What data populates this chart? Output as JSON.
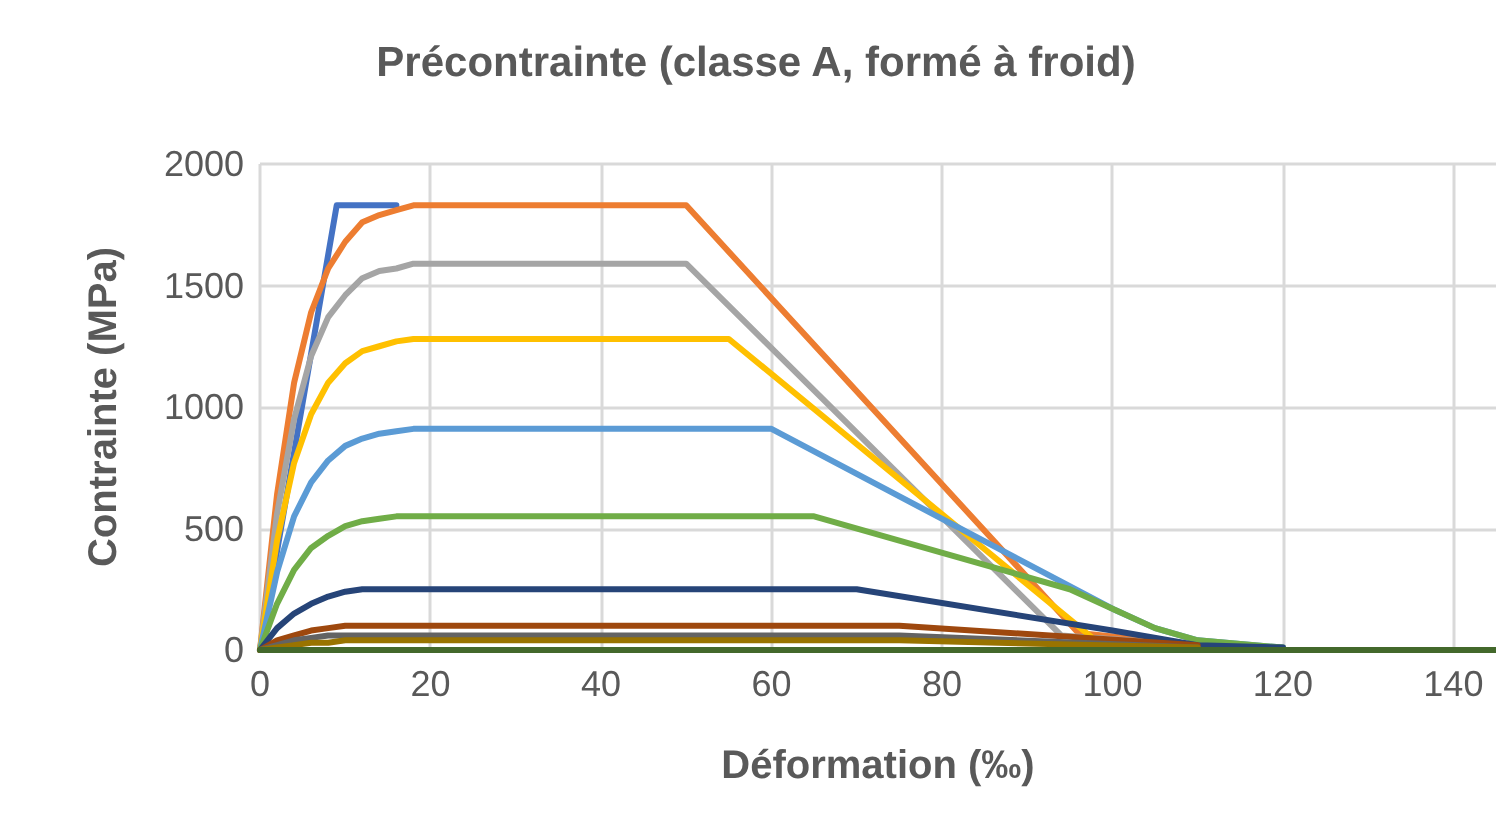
{
  "chart_data": {
    "type": "line",
    "title": "Précontrainte (classe A, formé à froid)",
    "xlabel": "Déformation (‰)",
    "ylabel": "Contrainte (MPa)",
    "xlim": [
      0,
      145
    ],
    "xticks": [
      0,
      20,
      40,
      60,
      80,
      100,
      120,
      140
    ],
    "ylim": [
      0,
      2000
    ],
    "yticks": [
      0,
      500,
      1000,
      1500,
      2000
    ],
    "grid": true,
    "marker": "none",
    "line_style": "solid",
    "series": [
      {
        "color": "#4472c4",
        "x": [
          0,
          9,
          16
        ],
        "values": [
          0,
          1830,
          1830
        ]
      },
      {
        "color": "#ed7d31",
        "x": [
          0,
          2,
          4,
          6,
          8,
          10,
          12,
          14,
          16,
          18,
          20,
          50,
          96,
          110
        ],
        "values": [
          0,
          640,
          1100,
          1390,
          1570,
          1680,
          1760,
          1790,
          1810,
          1830,
          1830,
          1830,
          70,
          20
        ]
      },
      {
        "color": "#a5a5a5",
        "x": [
          0,
          2,
          4,
          6,
          8,
          10,
          12,
          14,
          16,
          18,
          20,
          50,
          94,
          110
        ],
        "values": [
          0,
          560,
          950,
          1210,
          1370,
          1460,
          1530,
          1560,
          1570,
          1590,
          1590,
          1590,
          60,
          20
        ]
      },
      {
        "color": "#ffc000",
        "x": [
          0,
          2,
          4,
          6,
          8,
          10,
          12,
          14,
          16,
          18,
          20,
          55,
          98,
          110
        ],
        "values": [
          0,
          450,
          770,
          970,
          1100,
          1180,
          1230,
          1250,
          1270,
          1280,
          1280,
          1280,
          40,
          20
        ]
      },
      {
        "color": "#5b9bd5",
        "x": [
          0,
          2,
          4,
          6,
          8,
          10,
          12,
          14,
          16,
          18,
          20,
          60,
          100,
          105,
          110,
          120
        ],
        "values": [
          0,
          320,
          550,
          690,
          780,
          840,
          870,
          890,
          900,
          910,
          910,
          910,
          170,
          90,
          40,
          10
        ]
      },
      {
        "color": "#70ad47",
        "x": [
          0,
          2,
          4,
          6,
          8,
          10,
          12,
          14,
          16,
          18,
          20,
          65,
          95,
          100,
          105,
          110,
          120
        ],
        "values": [
          0,
          190,
          330,
          420,
          470,
          510,
          530,
          540,
          550,
          550,
          550,
          550,
          250,
          170,
          90,
          40,
          10
        ]
      },
      {
        "color": "#264478",
        "x": [
          0,
          2,
          4,
          6,
          8,
          10,
          12,
          14,
          16,
          18,
          20,
          70,
          100,
          110,
          120
        ],
        "values": [
          0,
          90,
          150,
          190,
          220,
          240,
          250,
          250,
          250,
          250,
          250,
          250,
          80,
          20,
          10
        ]
      },
      {
        "color": "#9e480e",
        "x": [
          0,
          2,
          4,
          6,
          8,
          10,
          12,
          14,
          16,
          18,
          20,
          75,
          110
        ],
        "values": [
          0,
          40,
          60,
          80,
          90,
          100,
          100,
          100,
          100,
          100,
          100,
          100,
          20
        ]
      },
      {
        "color": "#636363",
        "x": [
          0,
          2,
          4,
          6,
          8,
          10,
          12,
          14,
          16,
          18,
          20,
          75,
          110
        ],
        "values": [
          0,
          20,
          40,
          50,
          60,
          60,
          60,
          60,
          60,
          60,
          60,
          60,
          10
        ]
      },
      {
        "color": "#997300",
        "x": [
          0,
          2,
          4,
          6,
          8,
          10,
          12,
          14,
          16,
          18,
          20,
          75,
          110
        ],
        "values": [
          0,
          10,
          20,
          30,
          30,
          40,
          40,
          40,
          40,
          40,
          40,
          40,
          10
        ]
      },
      {
        "color": "#43682b",
        "x": [
          0,
          145
        ],
        "values": [
          0,
          0
        ]
      }
    ]
  }
}
